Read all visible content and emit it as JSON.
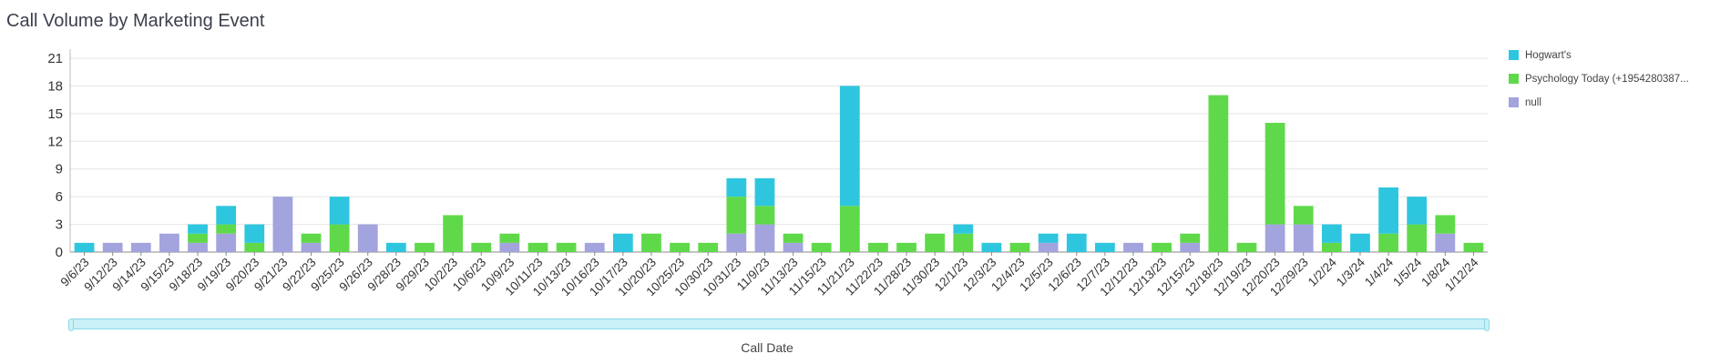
{
  "title": "Call Volume by Marketing Event",
  "chart_data": {
    "type": "bar",
    "stacked": true,
    "xlabel": "Call Date",
    "ylabel": "",
    "ylim": [
      0,
      21
    ],
    "yticks": [
      0,
      3,
      6,
      9,
      12,
      15,
      18,
      21
    ],
    "grid": true,
    "legend_position": "right",
    "categories": [
      "9/6/23",
      "9/12/23",
      "9/14/23",
      "9/15/23",
      "9/18/23",
      "9/19/23",
      "9/20/23",
      "9/21/23",
      "9/22/23",
      "9/25/23",
      "9/26/23",
      "9/28/23",
      "9/29/23",
      "10/2/23",
      "10/6/23",
      "10/9/23",
      "10/11/23",
      "10/13/23",
      "10/16/23",
      "10/17/23",
      "10/20/23",
      "10/25/23",
      "10/30/23",
      "10/31/23",
      "11/9/23",
      "11/13/23",
      "11/15/23",
      "11/21/23",
      "11/22/23",
      "11/28/23",
      "11/30/23",
      "12/1/23",
      "12/3/23",
      "12/4/23",
      "12/5/23",
      "12/6/23",
      "12/7/23",
      "12/12/23",
      "12/13/23",
      "12/15/23",
      "12/18/23",
      "12/19/23",
      "12/20/23",
      "12/29/23",
      "1/2/24",
      "1/3/24",
      "1/4/24",
      "1/5/24",
      "1/8/24",
      "1/12/24"
    ],
    "series": [
      {
        "name": "null",
        "color": "#a3a3de",
        "values": [
          0,
          1,
          1,
          2,
          1,
          2,
          0,
          6,
          1,
          0,
          3,
          0,
          0,
          0,
          0,
          1,
          0,
          0,
          1,
          0,
          0,
          0,
          0,
          2,
          3,
          1,
          0,
          0,
          0,
          0,
          0,
          0,
          0,
          0,
          1,
          0,
          0,
          1,
          0,
          1,
          0,
          0,
          3,
          3,
          0,
          0,
          0,
          0,
          2,
          0
        ]
      },
      {
        "name": "Psychology Today (+19542803870)",
        "display_name": "Psychology Today (+1954280387...",
        "color": "#5fd94a",
        "values": [
          0,
          0,
          0,
          0,
          1,
          1,
          1,
          0,
          1,
          3,
          0,
          0,
          1,
          4,
          1,
          1,
          1,
          1,
          0,
          0,
          2,
          1,
          1,
          4,
          2,
          1,
          1,
          5,
          1,
          1,
          2,
          2,
          0,
          1,
          0,
          0,
          0,
          0,
          1,
          1,
          17,
          1,
          11,
          2,
          1,
          0,
          2,
          3,
          2,
          1
        ]
      },
      {
        "name": "Hogwart's",
        "color": "#2ec6de",
        "values": [
          1,
          0,
          0,
          0,
          1,
          2,
          2,
          0,
          0,
          3,
          0,
          1,
          0,
          0,
          0,
          0,
          0,
          0,
          0,
          2,
          0,
          0,
          0,
          2,
          3,
          0,
          0,
          13,
          0,
          0,
          0,
          1,
          1,
          0,
          1,
          2,
          1,
          0,
          0,
          0,
          0,
          0,
          0,
          0,
          2,
          2,
          5,
          3,
          0,
          0
        ]
      }
    ]
  },
  "legend": [
    {
      "label": "Hogwart's",
      "color": "#2ec6de"
    },
    {
      "label": "Psychology Today (+1954280387...",
      "color": "#5fd94a"
    },
    {
      "label": "null",
      "color": "#a3a3de"
    }
  ]
}
